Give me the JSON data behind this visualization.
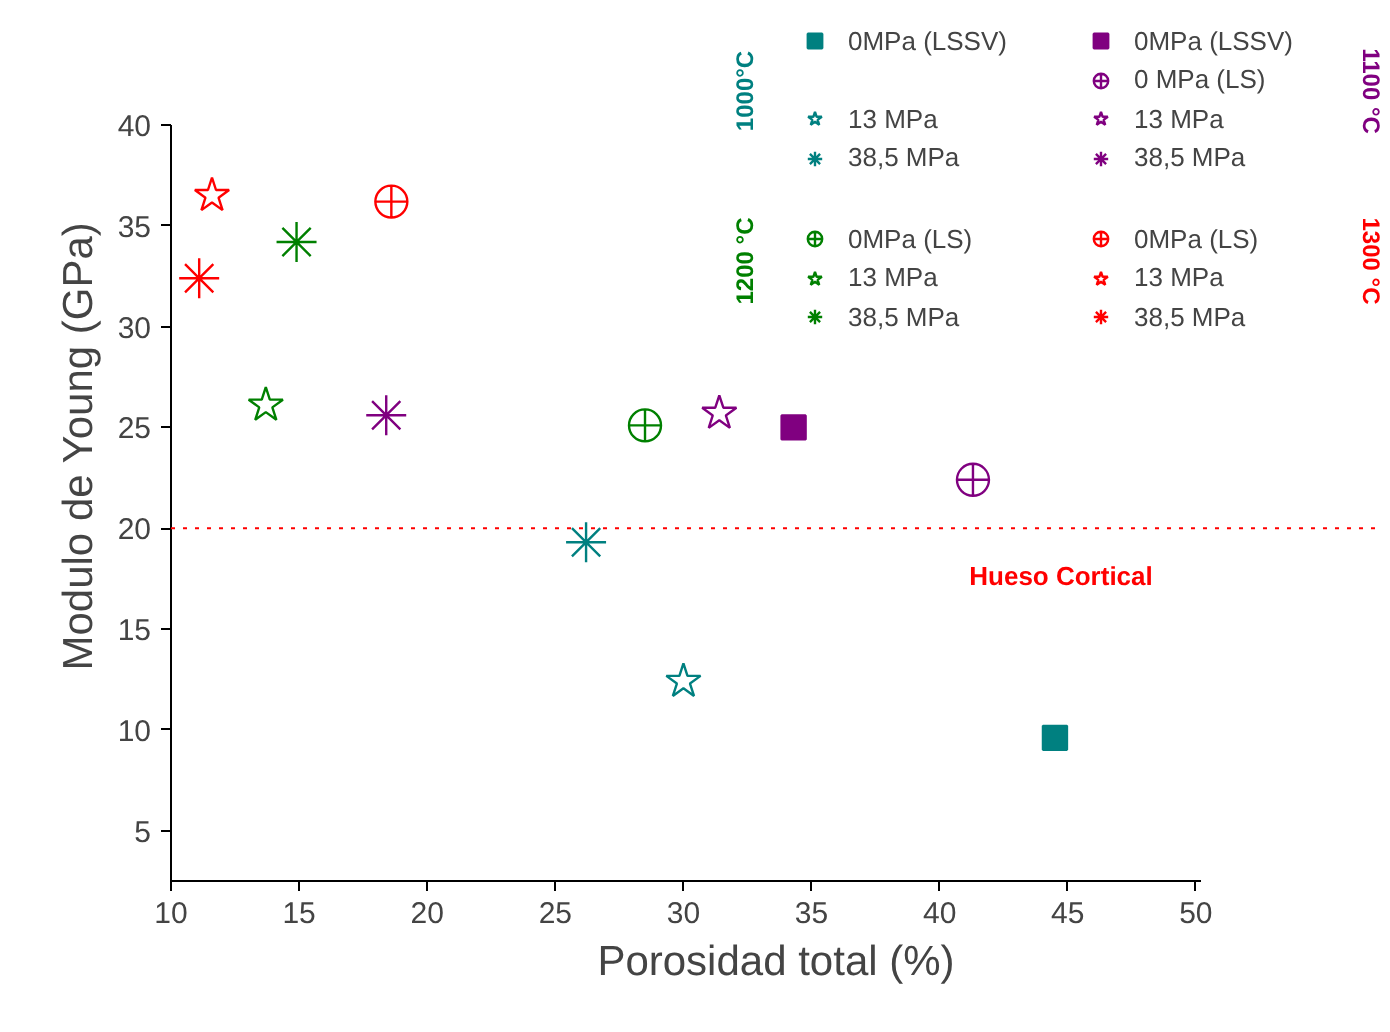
{
  "chart_data": {
    "type": "scatter",
    "xlabel": "Porosidad total (%)",
    "ylabel": "Modulo de Young (GPa)",
    "xlim": [
      10,
      50.2
    ],
    "ylim": [
      2.5,
      40
    ],
    "xticks": [
      10,
      15,
      20,
      25,
      30,
      35,
      40,
      45,
      50
    ],
    "yticks": [
      5,
      10,
      15,
      20,
      25,
      30,
      35,
      40
    ],
    "grid": false,
    "legend": "top right",
    "series": [
      {
        "name": "0MPa (LSSV)",
        "color": "#008080",
        "marker": "square",
        "x": [
          44.5
        ],
        "values": [
          9.6
        ]
      },
      {
        "name": "13 MPa",
        "color": "#008080",
        "marker": "star",
        "x": [
          30.0
        ],
        "values": [
          12.4
        ]
      },
      {
        "name": "38,5 MPa",
        "color": "#008080",
        "marker": "cross",
        "x": [
          26.2
        ],
        "values": [
          19.3
        ]
      },
      {
        "name": "0MPa (LSSV)",
        "color": "#800080",
        "marker": "square",
        "x": [
          34.3
        ],
        "values": [
          25.0
        ]
      },
      {
        "name": "0 MPa (LS)",
        "color": "#800080",
        "marker": "circle_cross",
        "x": [
          41.3
        ],
        "values": [
          22.4
        ]
      },
      {
        "name": "13 MPa",
        "color": "#800080",
        "marker": "star",
        "x": [
          31.4
        ],
        "values": [
          25.7
        ]
      },
      {
        "name": "38,5 MPa",
        "color": "#800080",
        "marker": "cross",
        "x": [
          18.4
        ],
        "values": [
          25.6
        ]
      },
      {
        "name": "0MPa (LS)",
        "color": "#008000",
        "marker": "circle_cross",
        "x": [
          28.5
        ],
        "values": [
          25.1
        ]
      },
      {
        "name": "13 MPa",
        "color": "#008000",
        "marker": "star",
        "x": [
          13.7
        ],
        "values": [
          26.1
        ]
      },
      {
        "name": "38,5 MPa",
        "color": "#008000",
        "marker": "cross",
        "x": [
          14.9
        ],
        "values": [
          34.2
        ]
      },
      {
        "name": "0MPa (LS)",
        "color": "#ff0000",
        "marker": "circle_cross",
        "x": [
          18.6
        ],
        "values": [
          36.2
        ]
      },
      {
        "name": "13 MPa",
        "color": "#ff0000",
        "marker": "star",
        "x": [
          11.6
        ],
        "values": [
          36.5
        ]
      },
      {
        "name": "38,5 MPa",
        "color": "#ff0000",
        "marker": "cross",
        "x": [
          11.1
        ],
        "values": [
          32.4
        ]
      }
    ],
    "ref_lines": [
      {
        "axis": "y",
        "value": 20,
        "label": "Hueso Cortical",
        "color": "#ff0000",
        "line_style": "dotted"
      }
    ],
    "annotations": [
      "1000°C",
      "1100 °C",
      "1200 °C",
      "1300 °C"
    ]
  }
}
